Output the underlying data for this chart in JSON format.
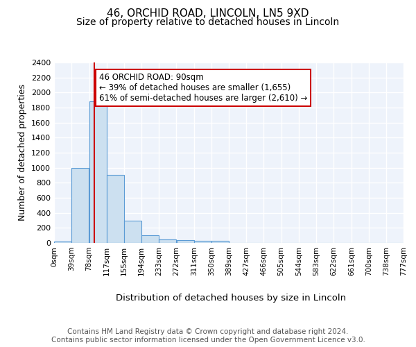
{
  "title1": "46, ORCHID ROAD, LINCOLN, LN5 9XD",
  "title2": "Size of property relative to detached houses in Lincoln",
  "xlabel": "Distribution of detached houses by size in Lincoln",
  "ylabel": "Number of detached properties",
  "bin_edges": [
    0,
    39,
    78,
    117,
    155,
    194,
    233,
    272,
    311,
    350,
    389,
    427,
    466,
    505,
    544,
    583,
    622,
    661,
    700,
    738,
    777
  ],
  "bar_heights": [
    20,
    1000,
    1880,
    900,
    300,
    100,
    50,
    40,
    25,
    25,
    0,
    0,
    0,
    0,
    0,
    0,
    0,
    0,
    0,
    0
  ],
  "bar_color": "#cce0f0",
  "bar_edge_color": "#5b9bd5",
  "background_color": "#eef3fb",
  "grid_color": "#ffffff",
  "vline_x": 90,
  "vline_color": "#cc0000",
  "annotation_text": "46 ORCHID ROAD: 90sqm\n← 39% of detached houses are smaller (1,655)\n61% of semi-detached houses are larger (2,610) →",
  "annotation_box_color": "#ffffff",
  "annotation_box_edge": "#cc0000",
  "ylim": [
    0,
    2400
  ],
  "yticks": [
    0,
    200,
    400,
    600,
    800,
    1000,
    1200,
    1400,
    1600,
    1800,
    2000,
    2200,
    2400
  ],
  "tick_labels": [
    "0sqm",
    "39sqm",
    "78sqm",
    "117sqm",
    "155sqm",
    "194sqm",
    "233sqm",
    "272sqm",
    "311sqm",
    "350sqm",
    "389sqm",
    "427sqm",
    "466sqm",
    "505sqm",
    "544sqm",
    "583sqm",
    "622sqm",
    "661sqm",
    "700sqm",
    "738sqm",
    "777sqm"
  ],
  "footer_text": "Contains HM Land Registry data © Crown copyright and database right 2024.\nContains public sector information licensed under the Open Government Licence v3.0.",
  "title1_fontsize": 11,
  "title2_fontsize": 10,
  "xlabel_fontsize": 9.5,
  "ylabel_fontsize": 9,
  "annotation_fontsize": 8.5,
  "footer_fontsize": 7.5,
  "tick_fontsize": 7.5
}
